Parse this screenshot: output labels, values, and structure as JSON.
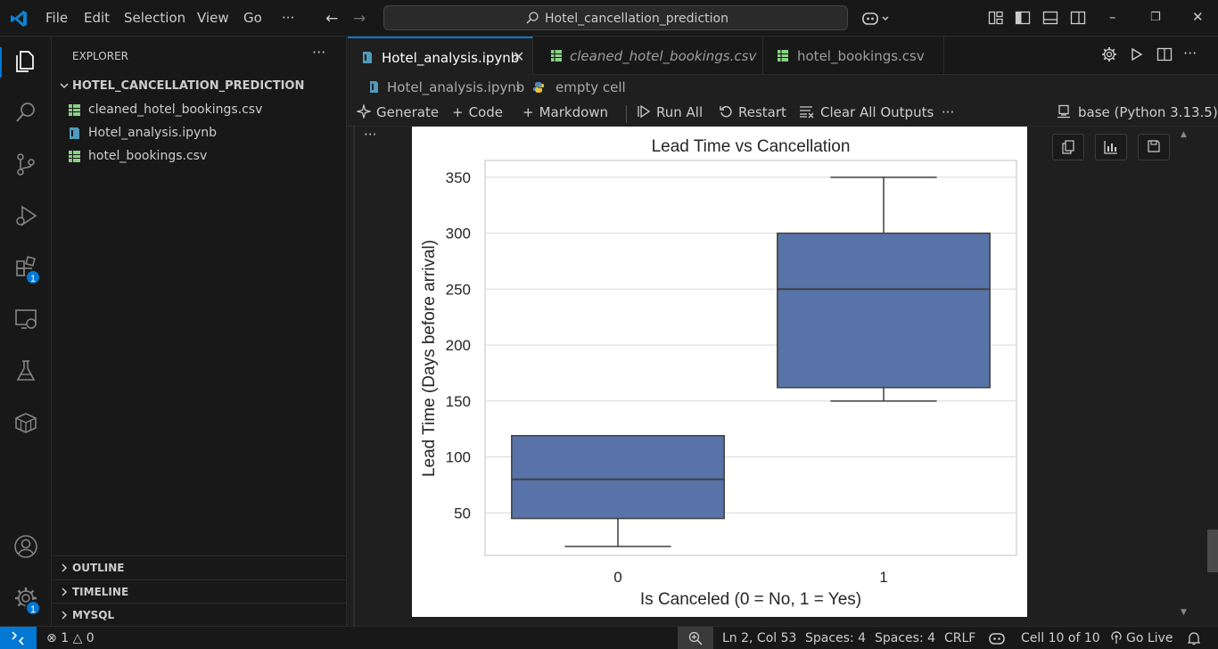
{
  "titlebar": {
    "menu": [
      "File",
      "Edit",
      "Selection",
      "View",
      "Go",
      "···"
    ],
    "search_text": "Hotel_cancellation_prediction",
    "nav_back": "←",
    "nav_forward": "→",
    "window_buttons": [
      "–",
      "❐",
      "✕"
    ]
  },
  "activity_bar": {
    "items": [
      {
        "name": "explorer-icon",
        "active": true
      },
      {
        "name": "search-icon"
      },
      {
        "name": "source-control-icon"
      },
      {
        "name": "run-debug-icon"
      },
      {
        "name": "extensions-icon",
        "badge": "1"
      },
      {
        "name": "remote-explorer-icon"
      },
      {
        "name": "testing-icon"
      },
      {
        "name": "containers-icon"
      }
    ],
    "bottom": [
      {
        "name": "account-icon"
      },
      {
        "name": "manage-gear-icon",
        "badge": "1"
      }
    ]
  },
  "sidebar": {
    "title": "EXPLORER",
    "more": "···",
    "folder": "HOTEL_CANCELLATION_PREDICTION",
    "files": [
      {
        "name": "cleaned_hotel_bookings.csv",
        "icon": "csv-file-icon"
      },
      {
        "name": "Hotel_analysis.ipynb",
        "icon": "notebook-file-icon"
      },
      {
        "name": "hotel_bookings.csv",
        "icon": "csv-file-icon"
      }
    ],
    "sections": [
      "OUTLINE",
      "TIMELINE",
      "MYSQL"
    ]
  },
  "tabs": [
    {
      "label": "Hotel_analysis.ipynb",
      "active": true,
      "close": "✕"
    },
    {
      "label": "cleaned_hotel_bookings.csv",
      "italic": true
    },
    {
      "label": "hotel_bookings.csv"
    }
  ],
  "breadcrumb": {
    "file": "Hotel_analysis.ipynb",
    "separator": "›",
    "cell": "empty cell"
  },
  "toolbar": {
    "generate": "Generate",
    "code": "Code",
    "markdown": "Markdown",
    "run_all": "Run All",
    "restart": "Restart",
    "clear_outputs": "Clear All Outputs",
    "more": "···",
    "kernel": "base (Python 3.13.5)"
  },
  "cell": {
    "more": "···"
  },
  "colors": {
    "accent": "#0078d4",
    "box_fill": "#5773a7",
    "csv_icon": "#89d185",
    "notebook_icon": "#519aba"
  },
  "chart_data": {
    "type": "boxplot",
    "title": "Lead Time vs Cancellation",
    "xlabel": "Is Canceled (0 = No, 1 = Yes)",
    "ylabel": "Lead Time (Days before arrival)",
    "categories": [
      "0",
      "1"
    ],
    "boxes": [
      {
        "category": "0",
        "whisker_low": 20,
        "q1": 45,
        "median": 80,
        "q3": 119,
        "whisker_high": 119
      },
      {
        "category": "1",
        "whisker_low": 150,
        "q1": 162,
        "median": 250,
        "q3": 300,
        "whisker_high": 350
      }
    ],
    "yticks": [
      50,
      100,
      150,
      200,
      250,
      300,
      350
    ],
    "ylim": [
      12,
      365
    ],
    "grid": true
  },
  "statusbar": {
    "errors": "1",
    "warnings": "0",
    "position": "Ln 2, Col 53",
    "spaces1": "Spaces: 4",
    "spaces2": "Spaces: 4",
    "eol": "CRLF",
    "cell": "Cell 10 of 10",
    "golive": "Go Live"
  }
}
